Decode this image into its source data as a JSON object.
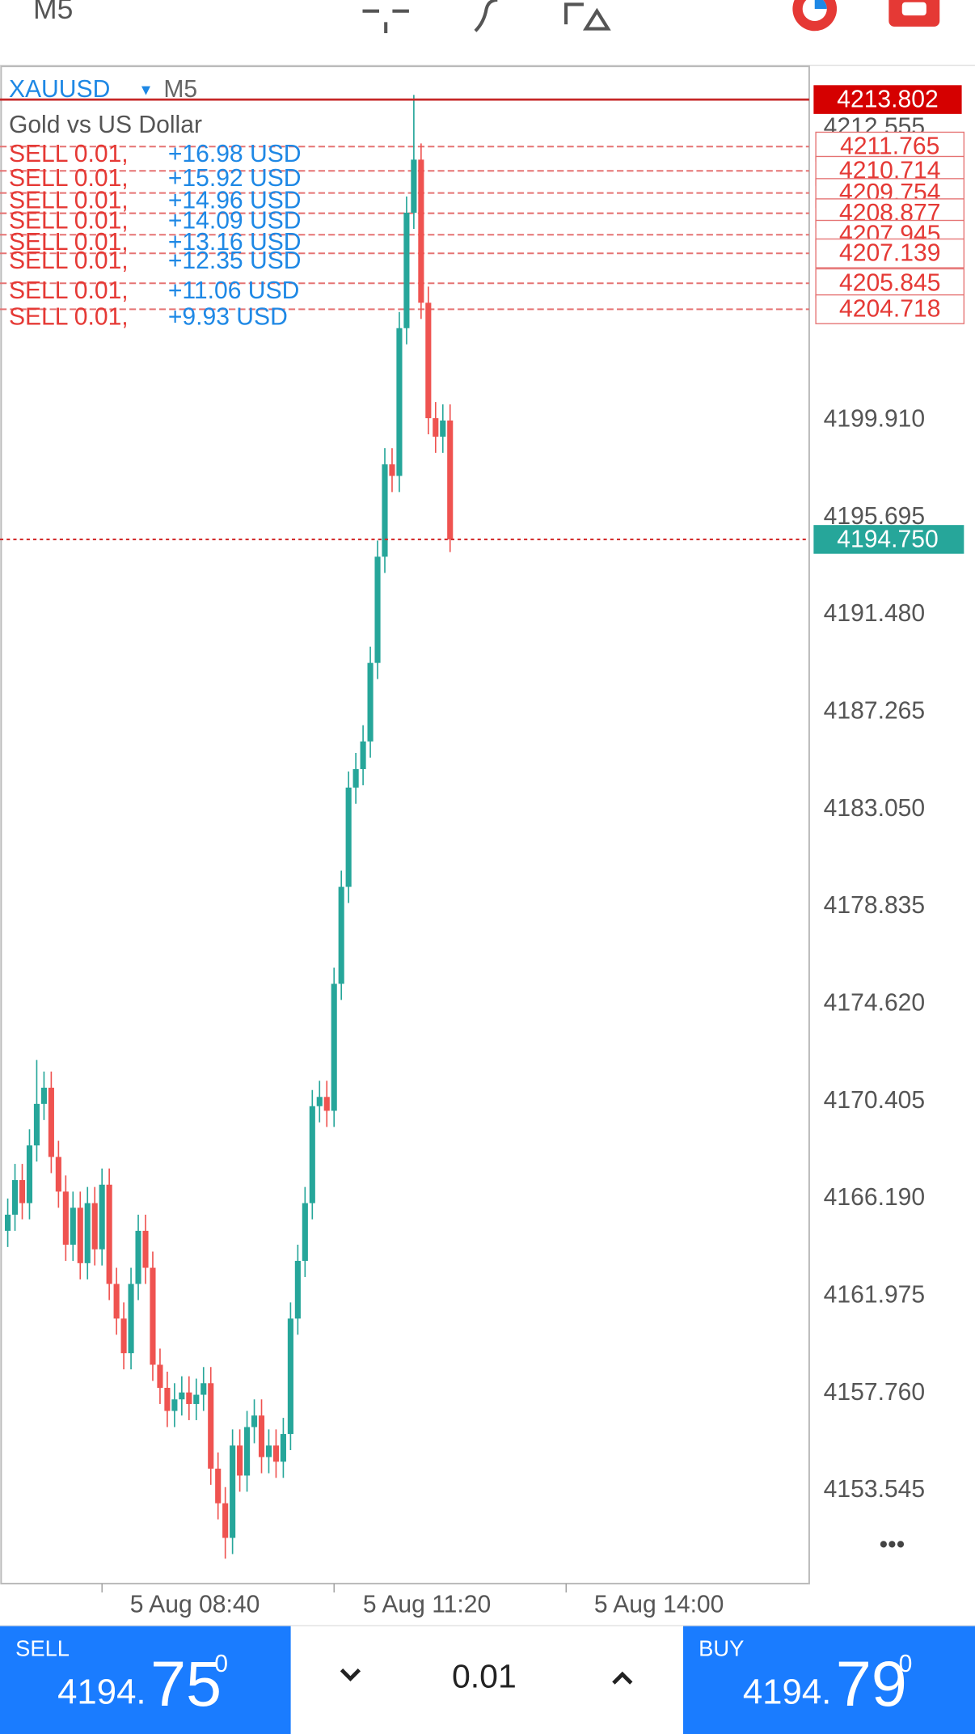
{
  "toolbar": {
    "period": "M5"
  },
  "chart_data": {
    "type": "candlestick",
    "symbol": "XAUUSD",
    "period": "M5",
    "description": "Gold vs US Dollar",
    "open": [
      4164.8,
      4165.5,
      4167.0,
      4166.0,
      4168.5,
      4170.3,
      4171.0,
      4168.0,
      4166.5,
      4164.2,
      4165.8,
      4163.4,
      4166.0,
      4164.0,
      4166.8,
      4162.5,
      4161.0,
      4159.5,
      4162.5,
      4164.8,
      4163.2,
      4159.0,
      4158.0,
      4157.0,
      4157.5,
      4157.8,
      4157.3,
      4157.7,
      4158.2,
      4154.5,
      4153.0,
      4151.5,
      4155.5,
      4154.2,
      4156.3,
      4156.8,
      4155.0,
      4155.5,
      4154.8,
      4156.0,
      4161.0,
      4163.5,
      4166.0,
      4170.2,
      4170.6,
      4170.0,
      4175.5,
      4179.7,
      4184.0,
      4184.8,
      4186.0,
      4189.4,
      4194.0,
      4198.0,
      4197.5,
      4203.9,
      4208.9,
      4211.2,
      4205.0,
      4200.0,
      4199.2,
      4199.9
    ],
    "high": [
      4166.2,
      4167.7,
      4167.7,
      4169.2,
      4172.2,
      4171.7,
      4171.7,
      4168.7,
      4167.2,
      4166.5,
      4166.5,
      4166.7,
      4166.7,
      4167.5,
      4167.5,
      4163.2,
      4161.7,
      4163.2,
      4165.5,
      4165.5,
      4163.9,
      4159.7,
      4158.7,
      4158.2,
      4158.5,
      4158.5,
      4158.4,
      4158.9,
      4158.9,
      4155.2,
      4153.7,
      4156.2,
      4156.2,
      4157.0,
      4157.5,
      4157.5,
      4156.2,
      4156.2,
      4156.7,
      4161.7,
      4164.2,
      4166.7,
      4170.9,
      4171.3,
      4171.3,
      4176.2,
      4180.4,
      4184.7,
      4185.5,
      4186.7,
      4190.1,
      4194.7,
      4198.7,
      4198.7,
      4204.6,
      4209.6,
      4214.0,
      4211.9,
      4205.7,
      4200.7,
      4200.6,
      4200.6
    ],
    "low": [
      4164.1,
      4164.8,
      4165.3,
      4165.3,
      4167.8,
      4169.6,
      4167.3,
      4165.8,
      4163.5,
      4163.5,
      4162.7,
      4162.7,
      4163.3,
      4163.3,
      4161.8,
      4160.3,
      4158.8,
      4158.8,
      4161.8,
      4162.5,
      4158.3,
      4157.3,
      4156.3,
      4156.3,
      4156.8,
      4156.6,
      4156.6,
      4157.0,
      4153.8,
      4152.3,
      4150.6,
      4150.8,
      4153.5,
      4153.5,
      4155.6,
      4154.3,
      4154.3,
      4154.1,
      4154.1,
      4155.3,
      4160.3,
      4162.8,
      4165.3,
      4169.5,
      4169.3,
      4169.3,
      4174.8,
      4179.0,
      4183.3,
      4184.1,
      4185.3,
      4188.7,
      4193.3,
      4196.8,
      4196.8,
      4203.2,
      4208.2,
      4204.3,
      4199.3,
      4198.5,
      4198.5,
      4194.2
    ],
    "close": [
      4165.5,
      4167.0,
      4166.0,
      4168.5,
      4170.3,
      4171.0,
      4168.0,
      4166.5,
      4164.2,
      4165.8,
      4163.4,
      4166.0,
      4164.0,
      4166.8,
      4162.5,
      4161.0,
      4159.5,
      4162.5,
      4164.8,
      4163.2,
      4159.0,
      4158.0,
      4157.0,
      4157.5,
      4157.8,
      4157.3,
      4157.7,
      4158.2,
      4154.5,
      4153.0,
      4151.5,
      4155.5,
      4154.2,
      4156.3,
      4156.8,
      4155.0,
      4155.5,
      4154.8,
      4156.0,
      4161.0,
      4163.5,
      4166.0,
      4170.2,
      4170.6,
      4170.0,
      4175.5,
      4179.7,
      4184.0,
      4184.8,
      4186.0,
      4189.4,
      4194.0,
      4198.0,
      4197.5,
      4203.9,
      4208.9,
      4211.2,
      4205.0,
      4200.0,
      4199.2,
      4199.9,
      4194.75
    ],
    "up_color": "#26a69a",
    "down_color": "#ef5350",
    "ylim": [
      4149.52,
      4215.24
    ],
    "yticks": [
      4153.545,
      {
        "value": 4157.76,
        "label": "4157.760"
      },
      4161.975,
      {
        "value": 4166.19,
        "label": "4166.190"
      },
      4170.405,
      {
        "value": 4174.62,
        "label": "4174.620"
      },
      4178.835,
      {
        "value": 4183.05,
        "label": "4183.050"
      },
      4187.265,
      {
        "value": 4191.48,
        "label": "4191.480"
      },
      4195.695,
      {
        "value": 4199.91,
        "label": "4199.910"
      },
      4212.555
    ],
    "xticks": [
      {
        "value": 13,
        "label": "5 Aug 08:40"
      },
      {
        "value": 45,
        "label": "5 Aug 11:20"
      },
      {
        "value": 77,
        "label": "5 Aug 14:00"
      }
    ],
    "top_line": 4213.802,
    "bid_line": {
      "value": 4194.75,
      "label": "4194.750"
    },
    "orders": [
      {
        "label": "SELL 0.01,",
        "price": 4211.765,
        "profit": {
          "value": 16.98,
          "label": "+16.98 USD"
        }
      },
      {
        "label": "SELL 0.01,",
        "price": 4210.714,
        "profit": {
          "value": 15.92,
          "label": "+15.92 USD"
        }
      },
      {
        "label": "SELL 0.01,",
        "price": 4209.754,
        "profit": {
          "value": 14.96,
          "label": "+14.96 USD"
        }
      },
      {
        "label": "SELL 0.01,",
        "price": 4208.877,
        "profit": {
          "value": 14.09,
          "label": "+14.09 USD"
        }
      },
      {
        "label": "SELL 0.01,",
        "price": 4207.945,
        "profit": {
          "value": 13.16,
          "label": "+13.16 USD"
        }
      },
      {
        "label": "SELL 0.01,",
        "price": 4207.139,
        "profit": {
          "value": 12.35,
          "label": "+12.35 USD"
        }
      },
      {
        "label": "SELL 0.01,",
        "price": 4205.845,
        "profit": {
          "value": 11.06,
          "label": "+11.06 USD"
        }
      },
      {
        "label": "SELL 0.01,",
        "price": 4204.718,
        "profit": {
          "value": 9.93,
          "label": "+9.93 USD"
        }
      }
    ],
    "more": "•••"
  },
  "order_panel": {
    "sell": {
      "label": "SELL",
      "price_main": "4194.",
      "price_big": "75",
      "price_sup": "0"
    },
    "volume": "0.01",
    "buy": {
      "label": "BUY",
      "price_main": "4194.",
      "price_big": "79",
      "price_sup": "0"
    }
  }
}
